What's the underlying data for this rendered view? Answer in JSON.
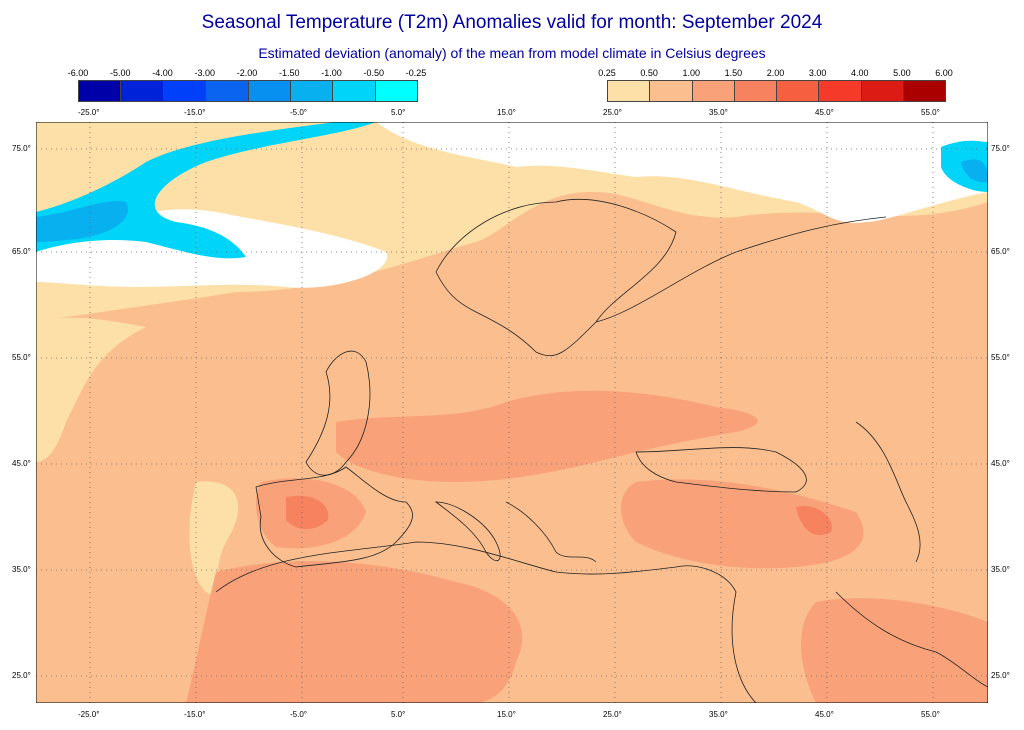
{
  "title": "Seasonal Temperature (T2m) Anomalies valid for month: September 2024",
  "subtitle": "Estimated deviation (anomaly) of the mean from model climate in Celsius degrees",
  "legend_negative": {
    "labels": [
      "-6.00",
      "-5.00",
      "-4.00",
      "-3.00",
      "-2.00",
      "-1.50",
      "-1.00",
      "-0.50",
      "-0.25"
    ],
    "colors": [
      "#0000a8",
      "#0022d8",
      "#0040f8",
      "#0a64f0",
      "#0890f0",
      "#08b0f0",
      "#00d4f8",
      "#00ffff"
    ]
  },
  "legend_positive": {
    "labels": [
      "0.25",
      "0.50",
      "1.00",
      "1.50",
      "2.00",
      "3.00",
      "4.00",
      "5.00",
      "6.00"
    ],
    "colors": [
      "#fde0a8",
      "#fbbf8f",
      "#f9a27a",
      "#f6825f",
      "#f66040",
      "#f53a2a",
      "#dc1c14",
      "#ab0000"
    ]
  },
  "lon_ticks": [
    "-25.0°",
    "-15.0°",
    "-5.0°",
    "5.0°",
    "15.0°",
    "25.0°",
    "35.0°",
    "45.0°",
    "55.0°"
  ],
  "lat_ticks": [
    "75.0°",
    "65.0°",
    "55.0°",
    "45.0°",
    "35.0°",
    "25.0°"
  ]
}
